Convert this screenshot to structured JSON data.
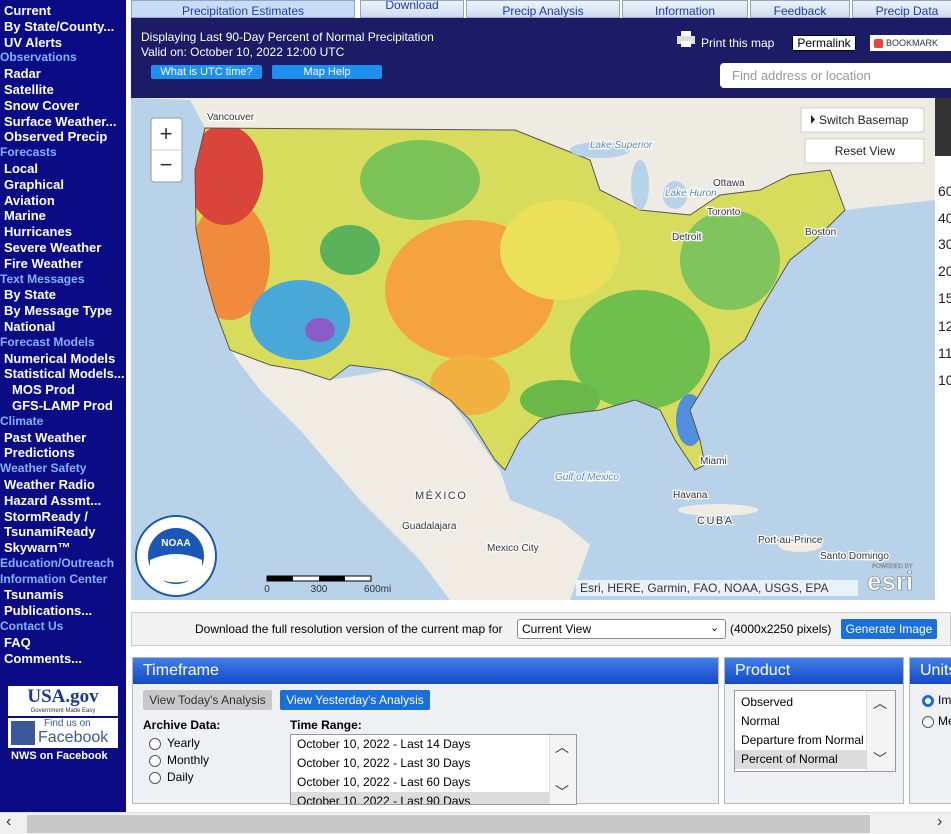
{
  "sidebar": {
    "groups": [
      {
        "links": [
          "Current",
          "By State/County...",
          "UV Alerts"
        ]
      },
      {
        "heading": "Observations",
        "links": [
          "Radar",
          "Satellite",
          "Snow Cover",
          "Surface Weather...",
          "Observed Precip"
        ]
      },
      {
        "heading": "Forecasts",
        "links": [
          "Local",
          "Graphical",
          "Aviation",
          "Marine",
          "Hurricanes",
          "Severe Weather",
          "Fire Weather"
        ]
      },
      {
        "heading": "Text Messages",
        "links": [
          "By State",
          "By Message Type",
          "National"
        ]
      },
      {
        "heading": "Forecast Models",
        "links": [
          "Numerical Models",
          "Statistical Models...",
          "MOS Prod",
          "GFS-LAMP Prod"
        ],
        "indented": [
          2,
          3
        ]
      },
      {
        "heading": "Climate",
        "links": [
          "Past Weather",
          "Predictions"
        ]
      },
      {
        "heading": "Weather Safety",
        "links": [
          "Weather Radio",
          "Hazard Assmt...",
          "StormReady / TsunamiReady",
          "Skywarn™"
        ]
      },
      {
        "heading": "Education/Outreach",
        "links": []
      },
      {
        "heading": "Information Center",
        "links": [
          "Tsunamis",
          "Publications..."
        ]
      },
      {
        "heading": "Contact Us",
        "links": [
          "FAQ",
          "Comments..."
        ]
      }
    ],
    "usa_gov": "USA.gov",
    "usa_gov_tagline": "Government Made Easy",
    "facebook_top": "Find us on",
    "facebook": "Facebook",
    "nws_facebook": "NWS on Facebook"
  },
  "tabs": [
    "Precipitation Estimates",
    "Download",
    "Precip Analysis",
    "Information",
    "Feedback",
    "Precip Data"
  ],
  "header": {
    "title": "Displaying Last 90-Day Percent of Normal Precipitation",
    "valid": "Valid on: October 10, 2022 12:00 UTC",
    "buttons": [
      "What is UTC time?",
      "Map Help"
    ],
    "print": "Print this map",
    "permalink": "Permalink",
    "bookmark": "BOOKMARK",
    "search": "Find address or location"
  },
  "map": {
    "zoom": [
      "+",
      "−"
    ],
    "switch_basemap": "Switch Basemap",
    "reset_view": "Reset View",
    "labels": [
      "Vancouver",
      "Lake Superior",
      "Lake Huron",
      "Ottawa",
      "Toronto",
      "Detroit",
      "Boston",
      "Miami",
      "Gulf of Mexico",
      "MÉXICO",
      "Havana",
      "CUBA",
      "Guadalajara",
      "Mexico City",
      "Port-au-Prince",
      "Santo Domingo"
    ],
    "scale": [
      "0",
      "300",
      "600mi"
    ],
    "attribution": "Esri, HERE, Garmin, FAO, NOAA, USGS, EPA",
    "powered": "POWERED BY",
    "esri": "esri",
    "noaa": "NOAA",
    "legend": [
      60,
      40,
      30,
      20,
      15,
      12,
      11,
      10
    ]
  },
  "download": {
    "text": "Download the full resolution version of the current map for",
    "select": "Current View",
    "size": "(4000x2250 pixels)",
    "button": "Generate Image"
  },
  "timeframe": {
    "title": "Timeframe",
    "buttons": [
      "View Today's Analysis",
      "View Yesterday's Analysis"
    ],
    "archive_label": "Archive Data:",
    "archive_options": [
      "Yearly",
      "Monthly",
      "Daily"
    ],
    "range_label": "Time Range:",
    "ranges": [
      "October 10, 2022 - Last 14 Days",
      "October 10, 2022 - Last 30 Days",
      "October 10, 2022 - Last 60 Days",
      "October 10, 2022 - Last 90 Days"
    ],
    "selected": 3
  },
  "product": {
    "title": "Product",
    "options": [
      "Observed",
      "Normal",
      "Departure from Normal",
      "Percent of Normal"
    ],
    "selected": 3
  },
  "units": {
    "title": "Units",
    "options": [
      "Imperial",
      "Metric"
    ],
    "selected": 0
  }
}
